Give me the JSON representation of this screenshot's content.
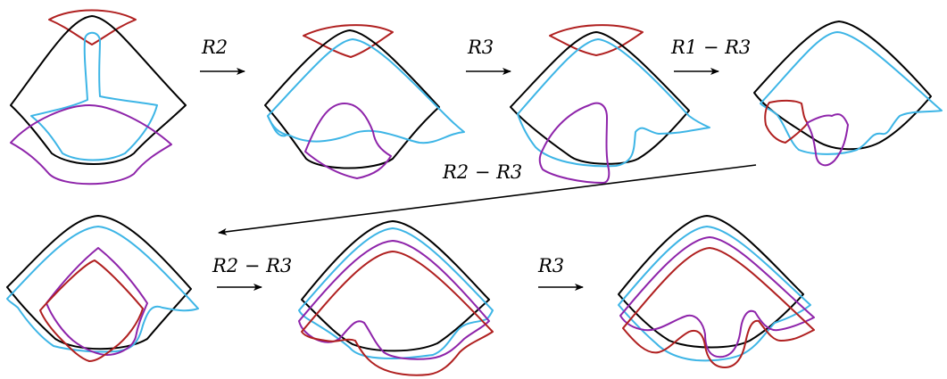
{
  "moves": [
    {
      "label": "R2"
    },
    {
      "label": "R3"
    },
    {
      "label": "R1 − R3"
    },
    {
      "label": "R2 − R3"
    },
    {
      "label": "R2 − R3"
    },
    {
      "label": "R3"
    }
  ],
  "colors": {
    "black": "#000000",
    "blue": "#3db5e6",
    "purple": "#8e24aa",
    "red": "#b02020"
  }
}
